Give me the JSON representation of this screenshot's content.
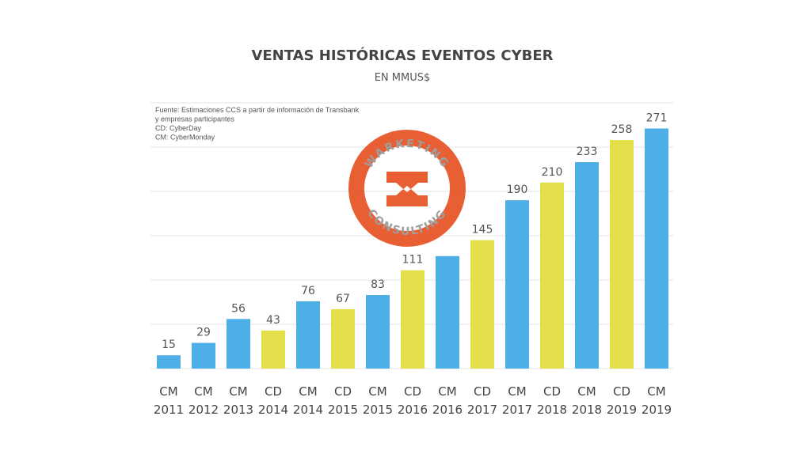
{
  "chart_data": {
    "type": "bar",
    "title": "VENTAS HISTÓRICAS EVENTOS CYBER",
    "subtitle": "EN MMUS$",
    "notes": [
      "Fuente: Estimaciones CCS a partir de información de Transbank",
      "y empresas participantes",
      "CD: CyberDay",
      "CM: CyberMonday"
    ],
    "categories": [
      [
        "CM",
        "2011"
      ],
      [
        "CM",
        "2012"
      ],
      [
        "CM",
        "2013"
      ],
      [
        "CD",
        "2014"
      ],
      [
        "CM",
        "2014"
      ],
      [
        "CD",
        "2015"
      ],
      [
        "CM",
        "2015"
      ],
      [
        "CD",
        "2016"
      ],
      [
        "CM",
        "2016"
      ],
      [
        "CD",
        "2017"
      ],
      [
        "CM",
        "2017"
      ],
      [
        "CD",
        "2018"
      ],
      [
        "CM",
        "2018"
      ],
      [
        "CD",
        "2019"
      ],
      [
        "CM",
        "2019"
      ]
    ],
    "values": [
      15,
      29,
      56,
      43,
      76,
      67,
      83,
      111,
      127,
      145,
      190,
      210,
      233,
      258,
      271
    ],
    "labels": [
      "15",
      "29",
      "56",
      "43",
      "76",
      "67",
      "83",
      "111",
      "",
      "145",
      "190",
      "210",
      "233",
      "258",
      "271"
    ],
    "ylim": [
      0,
      300
    ],
    "grid_step": 50,
    "grid": true,
    "colors": {
      "CM": "#4DAEE8",
      "CD": "#E3DF4A"
    }
  },
  "watermark": {
    "top_text": "WARKETING",
    "bottom_text": "CONSULTING",
    "color": "#E8572A"
  }
}
